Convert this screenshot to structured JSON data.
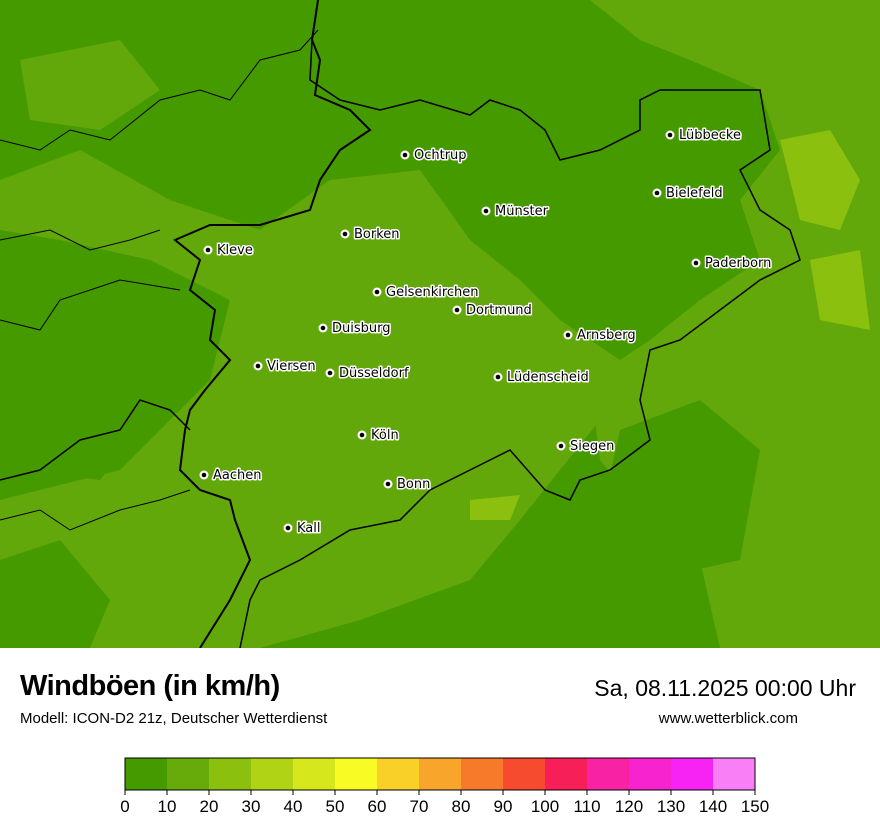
{
  "header": {
    "title": "Windböen (in km/h)",
    "subtitle": "Modell: ICON-D2 21z, Deutscher Wetterdienst",
    "datetime": "Sa, 08.11.2025 00:00 Uhr",
    "website": "www.wetterblick.com"
  },
  "map": {
    "base_color": "#459a00",
    "cities": [
      {
        "name": "Lübbecke"
      },
      {
        "name": "Ochtrup"
      },
      {
        "name": "Bielefeld"
      },
      {
        "name": "Münster"
      },
      {
        "name": "Borken"
      },
      {
        "name": "Kleve"
      },
      {
        "name": "Paderborn"
      },
      {
        "name": "Gelsenkirchen"
      },
      {
        "name": "Dortmund"
      },
      {
        "name": "Duisburg"
      },
      {
        "name": "Arnsberg"
      },
      {
        "name": "Viersen"
      },
      {
        "name": "Düsseldorf"
      },
      {
        "name": "Lüdenscheid"
      },
      {
        "name": "Köln"
      },
      {
        "name": "Siegen"
      },
      {
        "name": "Aachen"
      },
      {
        "name": "Bonn"
      },
      {
        "name": "Kall"
      }
    ]
  },
  "legend": {
    "ticks": [
      "0",
      "10",
      "20",
      "30",
      "40",
      "50",
      "60",
      "70",
      "80",
      "90",
      "100",
      "110",
      "120",
      "130",
      "140",
      "150"
    ],
    "colors": [
      "#459a00",
      "#67ab0a",
      "#8bc00f",
      "#b1d316",
      "#d6e81b",
      "#f9fb25",
      "#f9d027",
      "#f7a52b",
      "#f7792a",
      "#f74b30",
      "#f71f58",
      "#f723a4",
      "#f723ce",
      "#f723f5",
      "#f97ff7"
    ]
  }
}
